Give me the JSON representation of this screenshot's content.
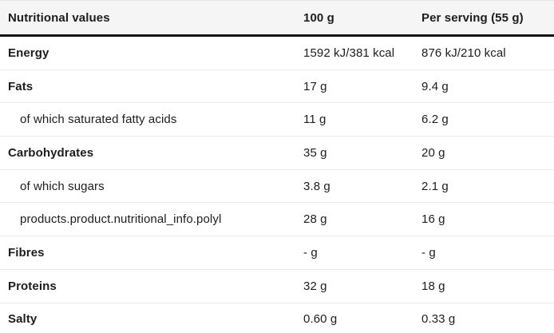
{
  "chart_data": {
    "type": "table",
    "title": "Nutritional values",
    "columns": [
      "Nutritional values",
      "100 g",
      "Per serving (55 g)"
    ],
    "rows": [
      {
        "label": "Energy",
        "per_100g": "1592 kJ/381 kcal",
        "per_serving": "876 kJ/210 kcal"
      },
      {
        "label": "Fats",
        "per_100g": "17 g",
        "per_serving": "9.4 g"
      },
      {
        "label": "of which saturated fatty acids",
        "per_100g": "11 g",
        "per_serving": "6.2 g"
      },
      {
        "label": "Carbohydrates",
        "per_100g": "35 g",
        "per_serving": "20 g"
      },
      {
        "label": "of which sugars",
        "per_100g": "3.8 g",
        "per_serving": "2.1 g"
      },
      {
        "label": "products.product.nutritional_info.polyl",
        "per_100g": "28 g",
        "per_serving": "16 g"
      },
      {
        "label": "Fibres",
        "per_100g": "- g",
        "per_serving": "- g"
      },
      {
        "label": "Proteins",
        "per_100g": "32 g",
        "per_serving": "18 g"
      },
      {
        "label": "Salty",
        "per_100g": "0.60 g",
        "per_serving": "0.33 g"
      }
    ]
  },
  "colors": {
    "header_background": "#f5f5f5",
    "header_rule": "#141414",
    "row_divider": "#eaeaea",
    "text": "#1d1d21"
  }
}
